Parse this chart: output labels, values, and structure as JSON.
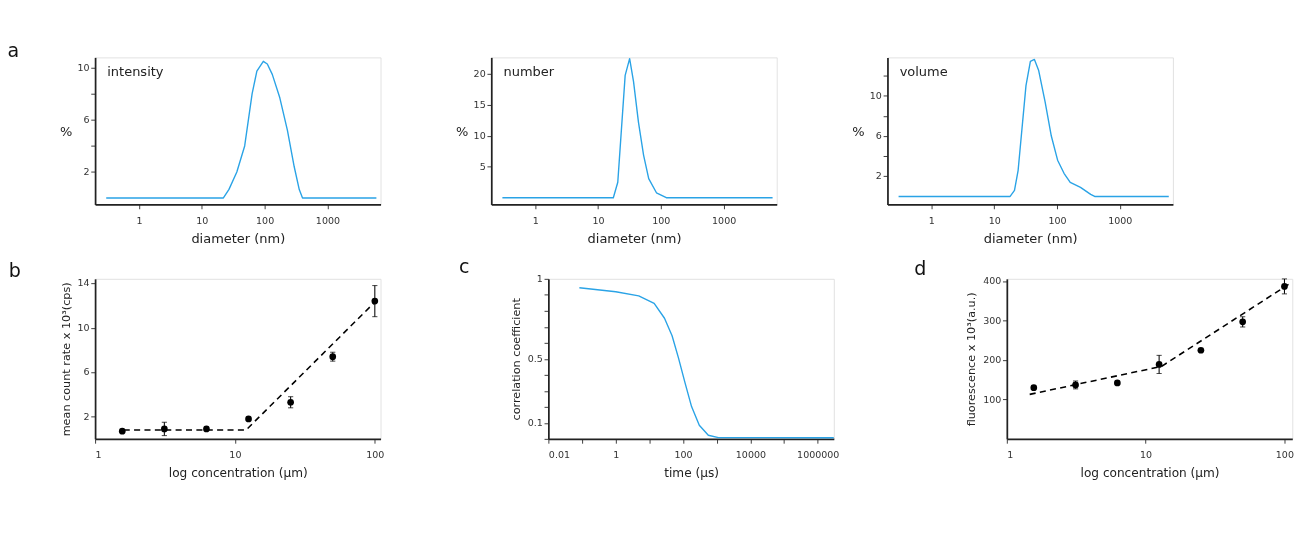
{
  "chart_data": [
    {
      "type": "line",
      "title": "a",
      "annotations": [
        "intensity"
      ],
      "xlabel": "diameter (nm)",
      "ylabel": "%",
      "log": "x",
      "grid": false,
      "xlim": [
        0.2,
        7000
      ],
      "xticks": [
        1,
        10,
        100,
        1000
      ],
      "ylim": [
        -0.5,
        10.8
      ],
      "yticks": [
        2,
        {
          "value": 4,
          "label": null
        },
        6,
        {
          "value": 8,
          "label": null
        },
        10
      ],
      "series": [
        {
          "color": "#2aa3e6",
          "x": [
            0.3,
            22,
            27,
            36,
            48,
            63,
            75,
            95,
            110,
            132,
            174,
            230,
            295,
            355,
            400,
            6000
          ],
          "values": [
            0,
            0,
            0.66,
            2.0,
            4.0,
            8.0,
            9.75,
            10.5,
            10.3,
            9.5,
            7.7,
            5.2,
            2.4,
            0.65,
            0,
            0
          ]
        }
      ]
    },
    {
      "type": "line",
      "annotations": [
        "number"
      ],
      "xlabel": "diameter (nm)",
      "ylabel": "%",
      "log": "x",
      "grid": false,
      "xlim": [
        0.2,
        7000
      ],
      "xticks": [
        1,
        10,
        100,
        1000
      ],
      "ylim": [
        -1.1,
        22.7
      ],
      "yticks": [
        5,
        10,
        15,
        20
      ],
      "series": [
        {
          "color": "#2aa3e6",
          "x": [
            0.3,
            17.5,
            20.6,
            27,
            31.8,
            36.7,
            44,
            53,
            64,
            85,
            122,
            6000
          ],
          "values": [
            0,
            0,
            2.5,
            19.8,
            22.5,
            18.8,
            12.2,
            6.9,
            3.1,
            0.8,
            0,
            0
          ]
        }
      ]
    },
    {
      "type": "line",
      "annotations": [
        "volume"
      ],
      "xlabel": "diameter (nm)",
      "ylabel": "%",
      "log": "x",
      "grid": false,
      "xlim": [
        0.2,
        7000
      ],
      "xticks": [
        1,
        10,
        100,
        1000
      ],
      "ylim": [
        -0.8,
        13.8
      ],
      "yticks": [
        2,
        {
          "value": 4,
          "label": null
        },
        6,
        {
          "value": 8,
          "label": null
        },
        10,
        {
          "value": 12,
          "label": null
        }
      ],
      "series": [
        {
          "color": "#2aa3e6",
          "x": [
            0.3,
            17.9,
            21,
            24,
            32,
            37.6,
            43.6,
            51,
            64.5,
            81,
            102,
            129,
            162,
            236,
            343,
            397,
            6000
          ],
          "values": [
            0,
            0,
            0.6,
            2.6,
            11.0,
            13.4,
            13.6,
            12.5,
            9.4,
            6.0,
            3.6,
            2.3,
            1.4,
            0.9,
            0.2,
            0,
            0
          ]
        }
      ]
    },
    {
      "type": "scatter",
      "title": "b",
      "xlabel": "log concentration (μm)",
      "ylabel": "mean count rate x 10³(cps)",
      "log": "x",
      "grid": false,
      "xlim": [
        1,
        110
      ],
      "xticks": [
        1,
        10,
        100
      ],
      "ylim": [
        0,
        14.4
      ],
      "yticks": [
        2,
        6,
        10,
        14
      ],
      "series": [
        {
          "type": "scatter",
          "marker": "circle",
          "color": "#000000",
          "x": [
            1.5625,
            3.125,
            6.25,
            12.5,
            25,
            50,
            100
          ],
          "values": [
            0.7,
            0.9,
            0.9,
            1.8,
            3.3,
            7.4,
            12.4
          ],
          "errors": [
            0.1,
            0.6,
            null,
            null,
            0.5,
            0.4,
            1.4
          ]
        },
        {
          "type": "line",
          "marker": "none",
          "color": "#000000",
          "line_style": "dashed",
          "x": [
            1.6,
            12,
            98
          ],
          "values": [
            0.8,
            0.8,
            12.2
          ]
        }
      ]
    },
    {
      "type": "line",
      "title": "c",
      "xlabel": "time (μs)",
      "ylabel": "correlation coefficient",
      "log": "x",
      "grid": false,
      "xlim": [
        0.01,
        3000000
      ],
      "xticks": [
        0.01,
        {
          "value": 0.1,
          "label": null
        },
        1,
        {
          "value": 10,
          "label": null
        },
        100,
        {
          "value": 1000,
          "label": null
        },
        10000,
        {
          "value": 100000,
          "label": null
        },
        1000000
      ],
      "ylim": [
        0,
        1
      ],
      "yticks": [
        {
          "value": 0,
          "label": null
        },
        0.1,
        {
          "value": 0.2,
          "label": null
        },
        {
          "value": 0.3,
          "label": null
        },
        {
          "value": 0.4,
          "label": null
        },
        0.5,
        {
          "value": 0.6,
          "label": null
        },
        {
          "value": 0.7,
          "label": null
        },
        {
          "value": 0.8,
          "label": null
        },
        {
          "value": 0.9,
          "label": null
        },
        1
      ],
      "series": [
        {
          "color": "#2aa3e6",
          "x": [
            0.083,
            1,
            4.8,
            13.8,
            28,
            47,
            73,
            114,
            178,
            302,
            560,
            1120,
            11000,
            3000000
          ],
          "values": [
            0.945,
            0.92,
            0.894,
            0.847,
            0.754,
            0.645,
            0.505,
            0.35,
            0.202,
            0.085,
            0.023,
            0.008,
            0.008,
            0.007
          ]
        }
      ]
    },
    {
      "type": "scatter",
      "title": "d",
      "xlabel": "log concentration (μm)",
      "ylabel": "fluorescence x 10³(a.u.)",
      "log": "x",
      "grid": false,
      "xlim": [
        1,
        114
      ],
      "xticks": [
        1,
        10,
        100
      ],
      "ylim": [
        0,
        406
      ],
      "yticks": [
        100,
        200,
        300,
        400
      ],
      "series": [
        {
          "type": "scatter",
          "marker": "circle",
          "color": "#000000",
          "x": [
            1.5625,
            3.125,
            6.25,
            12.5,
            25,
            50,
            100
          ],
          "values": [
            130,
            137,
            142,
            189,
            225,
            297,
            387
          ],
          "errors": [
            null,
            10,
            null,
            23,
            null,
            13,
            19
          ]
        },
        {
          "type": "line",
          "marker": "none",
          "color": "#000000",
          "line_style": "dashed",
          "x": [
            1.46,
            13,
            107
          ],
          "values": [
            113,
            184,
            392
          ]
        }
      ]
    }
  ]
}
